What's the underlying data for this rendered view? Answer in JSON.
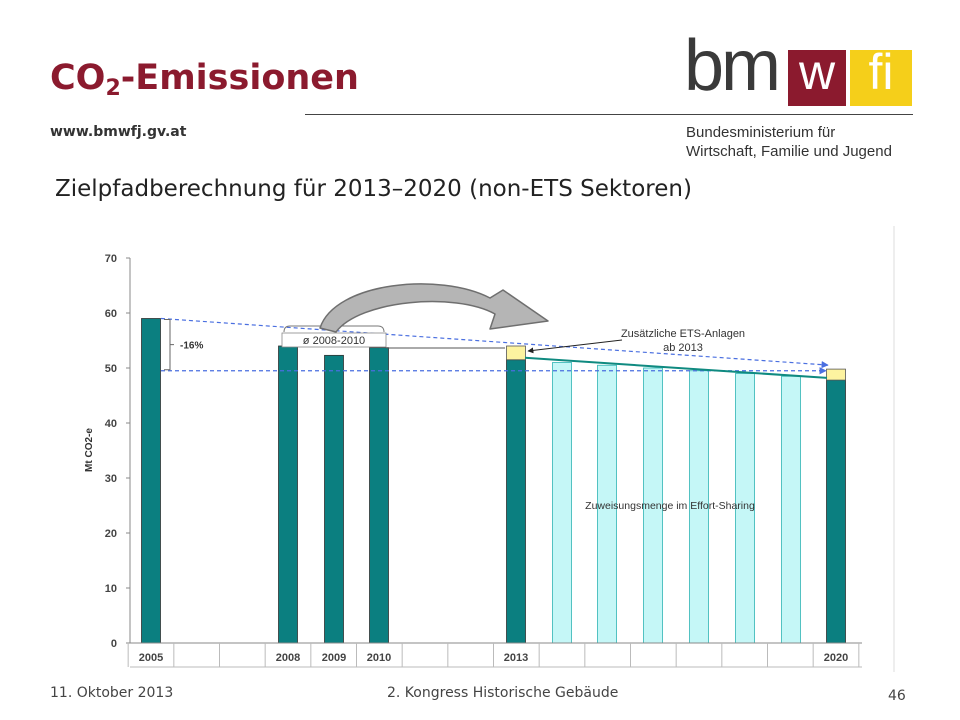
{
  "header": {
    "title_main": "CO",
    "title_sub": "2",
    "title_rest": "-Emissionen",
    "website": "www.bmwfj.gv.at",
    "logo_bm": "bm",
    "logo_w": "w",
    "logo_fi": "fi",
    "ministry_line1": "Bundesministerium für",
    "ministry_line2": "Wirtschaft, Familie und Jugend"
  },
  "subtitle": "Zielpfadberechnung für 2013–2020 (non-ETS Sektoren)",
  "footer": {
    "date": "11. Oktober 2013",
    "event": "2. Kongress Historische Gebäude",
    "page": "46"
  },
  "colors": {
    "brand_red": "#8b1a2e",
    "brand_yellow": "#f5cf1a",
    "actual_bar": "#0b7f80",
    "allocation_bar": "#c5f7f7",
    "additional_ets": "#fdf3a0",
    "guide_line": "#4a6fe0"
  },
  "chart_data": {
    "type": "bar",
    "ylabel": "Mt CO2-e",
    "ylim": [
      0,
      70
    ],
    "yticks": [
      0,
      10,
      20,
      30,
      40,
      50,
      60,
      70
    ],
    "grid": false,
    "x_tick_labels": [
      "2005",
      "2008",
      "2009",
      "2010",
      "2013",
      "2020"
    ],
    "series": [
      {
        "kind": "actual",
        "points": [
          {
            "year": 2005,
            "value": 59
          },
          {
            "year": 2008,
            "value": 54
          },
          {
            "year": 2009,
            "value": 52.3
          },
          {
            "year": 2010,
            "value": 53.7
          },
          {
            "year": 2013,
            "value": 51.5
          },
          {
            "year": 2020,
            "value": 47.8
          }
        ]
      },
      {
        "kind": "allocation",
        "points": [
          {
            "year": 2014,
            "value": 51
          },
          {
            "year": 2015,
            "value": 50.5
          },
          {
            "year": 2016,
            "value": 50
          },
          {
            "year": 2017,
            "value": 49.5
          },
          {
            "year": 2018,
            "value": 49
          },
          {
            "year": 2019,
            "value": 48.5
          }
        ]
      },
      {
        "kind": "additional_ets",
        "points": [
          {
            "year": 2013,
            "base": 51.5,
            "top": 54
          },
          {
            "year": 2020,
            "base": 47.8,
            "top": 49.8
          }
        ]
      }
    ],
    "annotations": {
      "reduction_label": "-16%",
      "average_label": "ø 2008-2010",
      "ets_label_line1": "Zusätzliche ETS-Anlagen",
      "ets_label_line2": "ab 2013",
      "allocation_label": "Zuweisungsmenge im Effort-Sharing",
      "upper_guide": {
        "from_year": 2005,
        "from_value": 59,
        "to_year": 2020,
        "to_value": 49.8
      },
      "lower_guide": {
        "from_year": 2005,
        "from_value": 49.5,
        "to_year": 2020,
        "to_value": 49.5
      }
    }
  }
}
